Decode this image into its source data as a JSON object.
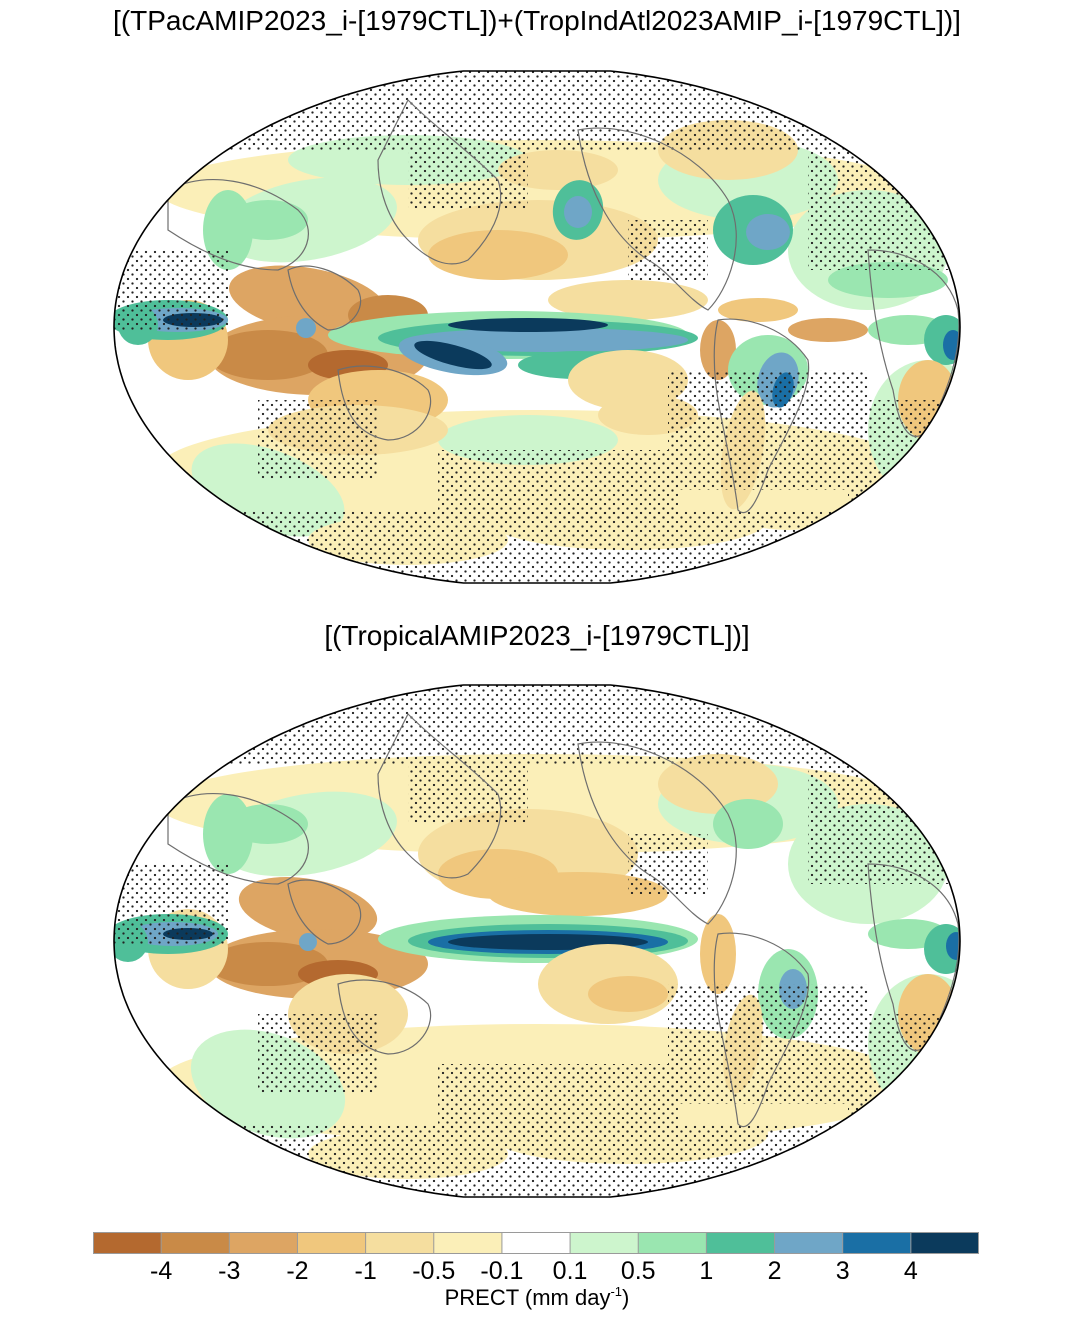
{
  "panels": [
    {
      "title": "[(TPacAMIP2023_i-[1979CTL])+(TropIndAtl2023AMIP_i-[1979CTL])]"
    },
    {
      "title": "[(TropicalAMIP2023_i-[1979CTL])]"
    }
  ],
  "colorbar": {
    "label_main": "PRECT (mm day",
    "label_sup": "-1",
    "label_close": ")",
    "ticks": [
      "-4",
      "-3",
      "-2",
      "-1",
      "-0.5",
      "-0.1",
      "0.1",
      "0.5",
      "1",
      "2",
      "3",
      "4"
    ],
    "colors": [
      "#b4692f",
      "#c98a47",
      "#dda563",
      "#f0c77d",
      "#f5de9f",
      "#fbefb8",
      "#ffffff",
      "#cdf5cd",
      "#9ae6b0",
      "#4fbf99",
      "#6fa6c7",
      "#1a6fa5",
      "#0b3a5c"
    ]
  },
  "map_palette": {
    "coast": "#6e6e6e",
    "stipple": "#222222",
    "frame": "#000000"
  }
}
